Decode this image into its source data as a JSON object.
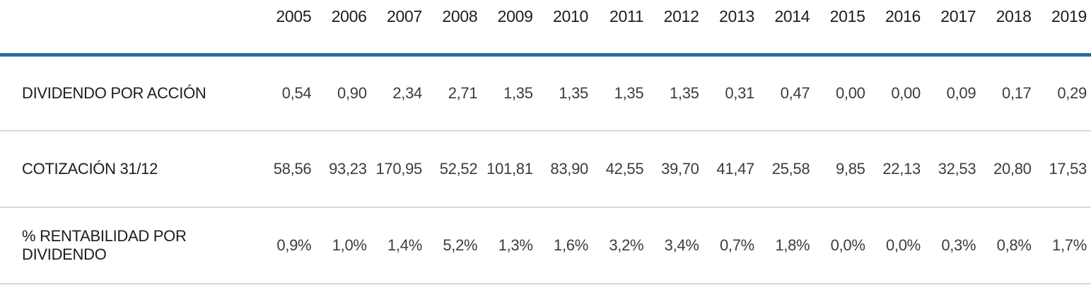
{
  "colors": {
    "header_rule": "#2c6d9e",
    "row_divider": "#d9d9d9",
    "label_text": "#1d1d1b",
    "value_text": "#3c3c3b"
  },
  "chart_data": {
    "type": "table",
    "columns": [
      "2005",
      "2006",
      "2007",
      "2008",
      "2009",
      "2010",
      "2011",
      "2012",
      "2013",
      "2014",
      "2015",
      "2016",
      "2017",
      "2018",
      "2019"
    ],
    "rows": [
      {
        "label": "DIVIDENDO POR ACCIÓN",
        "values": [
          "0,54",
          "0,90",
          "2,34",
          "2,71",
          "1,35",
          "1,35",
          "1,35",
          "1,35",
          "0,31",
          "0,47",
          "0,00",
          "0,00",
          "0,09",
          "0,17",
          "0,29"
        ]
      },
      {
        "label": "COTIZACIÓN 31/12",
        "values": [
          "58,56",
          "93,23",
          "170,95",
          "52,52",
          "101,81",
          "83,90",
          "42,55",
          "39,70",
          "41,47",
          "25,58",
          "9,85",
          "22,13",
          "32,53",
          "20,80",
          "17,53"
        ]
      },
      {
        "label": "% RENTABILIDAD POR DIVIDENDO",
        "values": [
          "0,9%",
          "1,0%",
          "1,4%",
          "5,2%",
          "1,3%",
          "1,6%",
          "3,2%",
          "3,4%",
          "0,7%",
          "1,8%",
          "0,0%",
          "0,0%",
          "0,3%",
          "0,8%",
          "1,7%"
        ]
      }
    ]
  }
}
